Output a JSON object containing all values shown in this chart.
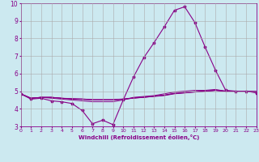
{
  "xlabel": "Windchill (Refroidissement éolien,°C)",
  "ylabel": "",
  "background_color": "#cce9f0",
  "line_color": "#880088",
  "grid_color": "#aaaaaa",
  "xlim": [
    0,
    23
  ],
  "ylim": [
    3,
    10
  ],
  "yticks": [
    3,
    4,
    5,
    6,
    7,
    8,
    9,
    10
  ],
  "xticks": [
    0,
    1,
    2,
    3,
    4,
    5,
    6,
    7,
    8,
    9,
    10,
    11,
    12,
    13,
    14,
    15,
    16,
    17,
    18,
    19,
    20,
    21,
    22,
    23
  ],
  "lines": [
    [
      4.85,
      4.55,
      4.6,
      4.45,
      4.4,
      4.3,
      3.9,
      3.15,
      3.35,
      3.1,
      4.5,
      5.8,
      6.9,
      7.75,
      8.65,
      9.6,
      9.8,
      8.9,
      7.5,
      6.2,
      5.05,
      5.0,
      5.0,
      4.9
    ],
    [
      4.85,
      4.6,
      4.65,
      4.6,
      4.55,
      4.5,
      4.45,
      4.4,
      4.4,
      4.4,
      4.5,
      4.65,
      4.7,
      4.75,
      4.85,
      4.95,
      5.0,
      5.05,
      5.05,
      5.1,
      5.0,
      5.0,
      5.0,
      5.0
    ],
    [
      4.85,
      4.6,
      4.65,
      4.65,
      4.6,
      4.55,
      4.55,
      4.5,
      4.5,
      4.5,
      4.55,
      4.6,
      4.65,
      4.7,
      4.75,
      4.85,
      4.9,
      4.95,
      5.0,
      5.05,
      5.0,
      5.0,
      5.0,
      4.95
    ],
    [
      4.85,
      4.6,
      4.65,
      4.65,
      4.6,
      4.58,
      4.56,
      4.52,
      4.52,
      4.52,
      4.56,
      4.62,
      4.66,
      4.72,
      4.78,
      4.88,
      4.92,
      4.97,
      5.0,
      5.05,
      5.0,
      5.0,
      5.0,
      4.95
    ],
    [
      4.85,
      4.6,
      4.65,
      4.65,
      4.6,
      4.56,
      4.53,
      4.51,
      4.51,
      4.51,
      4.53,
      4.61,
      4.65,
      4.71,
      4.77,
      4.87,
      4.91,
      4.96,
      5.0,
      5.04,
      5.0,
      5.0,
      5.0,
      4.95
    ]
  ]
}
